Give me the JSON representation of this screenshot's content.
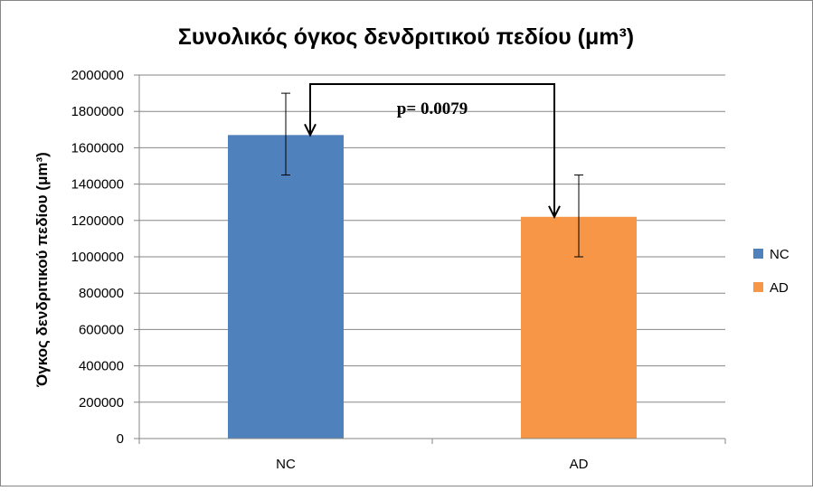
{
  "chart_data": {
    "type": "bar",
    "title": "Συνολικός όγκος δενδριτικού πεδίου (μm³)",
    "xlabel": "",
    "ylabel": "Όγκος δενδριτικού πεδίου (μm³)",
    "categories": [
      "NC",
      "AD"
    ],
    "series": [
      {
        "name": "NC",
        "color": "#4f81bd",
        "values": [
          1670000,
          null
        ]
      },
      {
        "name": "AD",
        "color": "#f79646",
        "values": [
          null,
          1220000
        ]
      }
    ],
    "error_bars": [
      {
        "category": "NC",
        "low": 1450000,
        "high": 1900000
      },
      {
        "category": "AD",
        "low": 1000000,
        "high": 1450000
      }
    ],
    "ylim": [
      0,
      2000000
    ],
    "yticks": [
      "0",
      "200000",
      "400000",
      "600000",
      "800000",
      "1000000",
      "1200000",
      "1400000",
      "1600000",
      "1800000",
      "2000000"
    ],
    "grid": true,
    "legend_position": "right",
    "annotation": {
      "text": "p= 0.0079",
      "from": "NC",
      "to": "AD",
      "bracket_value": 1950000
    }
  }
}
